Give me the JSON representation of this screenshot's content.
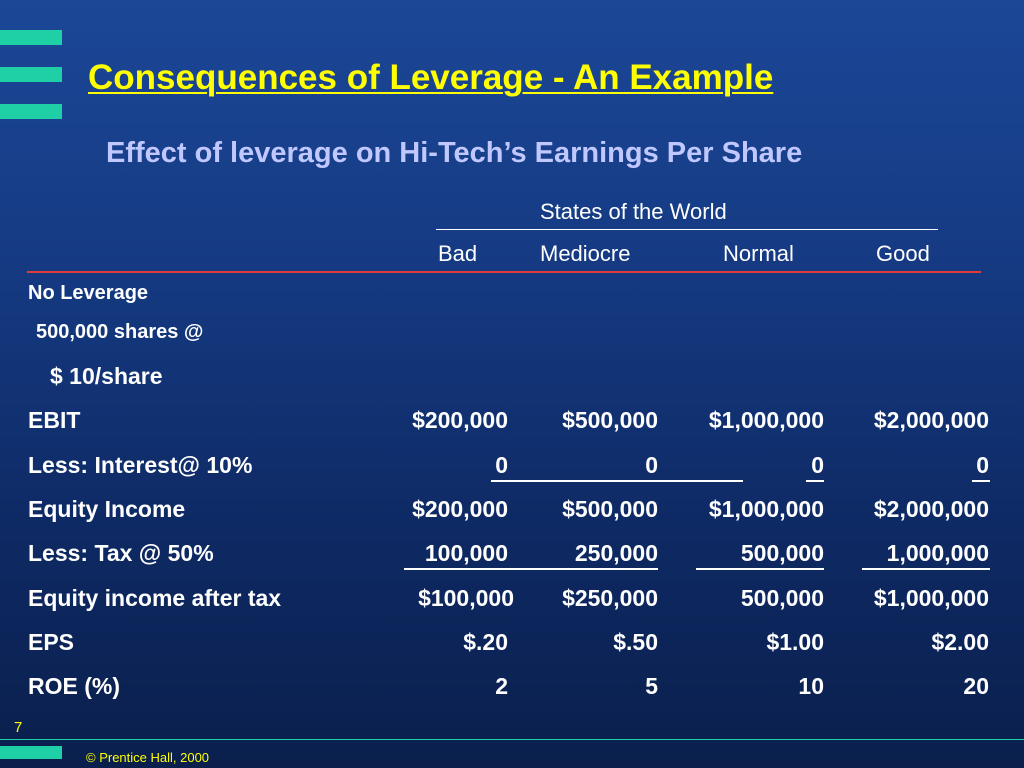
{
  "title": "Consequences of Leverage - An Example",
  "subtitle": "Effect of leverage on Hi-Tech’s Earnings Per Share",
  "table": {
    "group_header": "States of the World",
    "columns": [
      "Bad",
      "Mediocre",
      "Normal",
      "Good"
    ],
    "section_label": "No Leverage",
    "sub_label_1": "500,000 shares @",
    "sub_label_2": "$ 10/share",
    "rows": [
      {
        "label": "EBIT",
        "values": [
          "$200,000",
          "$500,000",
          "$1,000,000",
          "$2,000,000"
        ]
      },
      {
        "label": "Less: Interest@ 10%",
        "values": [
          "0",
          "0",
          "0",
          "0"
        ]
      },
      {
        "label": "Equity Income",
        "values": [
          "$200,000",
          "$500,000",
          "$1,000,000",
          "$2,000,000"
        ]
      },
      {
        "label": "Less: Tax @ 50%",
        "values": [
          "100,000",
          "250,000",
          "500,000",
          "1,000,000"
        ]
      },
      {
        "label": "Equity income after tax",
        "values": [
          "$100,000",
          "$250,000",
          "500,000",
          "$1,000,000"
        ]
      },
      {
        "label": "EPS",
        "values": [
          "$.20",
          "$.50",
          "$1.00",
          "$2.00"
        ]
      },
      {
        "label": "ROE (%)",
        "values": [
          "2",
          "5",
          "10",
          "20"
        ]
      }
    ]
  },
  "footer": {
    "slide_number": "7",
    "copyright": "© Prentice Hall, 2000"
  },
  "colors": {
    "title": "#ffff00",
    "subtitle": "#c0c8ff",
    "accent_bars": "#1fd0a6",
    "header_rule": "#e03a3a"
  }
}
